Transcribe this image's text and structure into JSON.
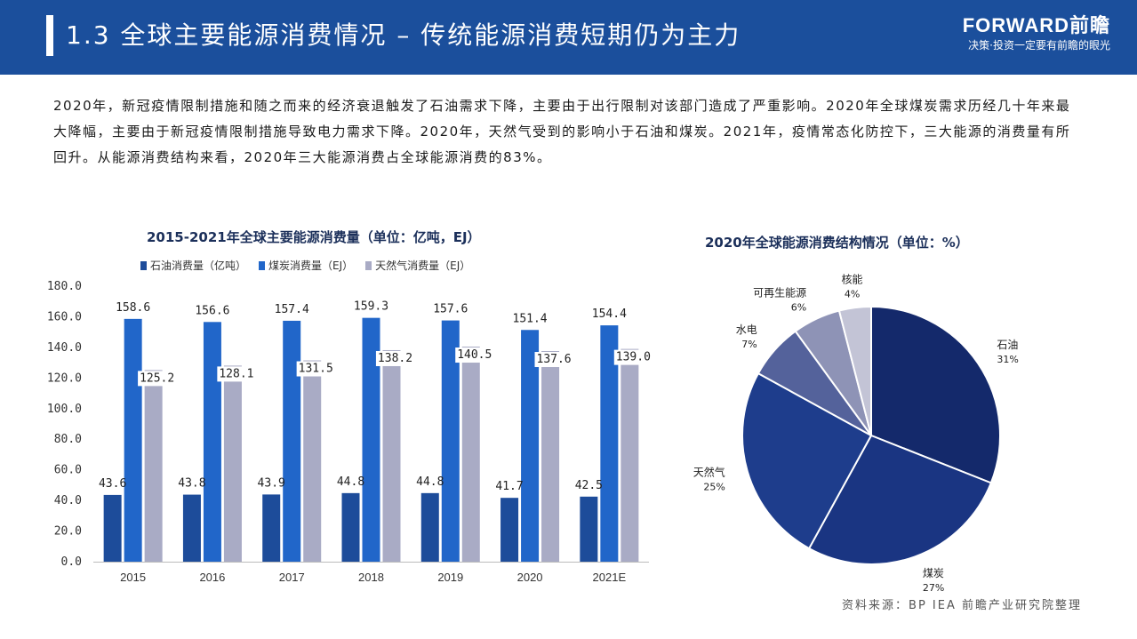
{
  "header": {
    "title": "1.3 全球主要能源消费情况 – 传统能源消费短期仍为主力",
    "brand_logo": "FORWARD前瞻",
    "brand_slogan": "决策·投资一定要有前瞻的眼光"
  },
  "intro": "2020年，新冠疫情限制措施和随之而来的经济衰退触发了石油需求下降，主要由于出行限制对该部门造成了严重影响。2020年全球煤炭需求历经几十年来最大降幅，主要由于新冠疫情限制措施导致电力需求下降。2020年，天然气受到的影响小于石油和煤炭。2021年，疫情常态化防控下，三大能源的消费量有所回升。从能源消费结构来看，2020年三大能源消费占全球能源消费的83%。",
  "source": "资料来源：BP IEA 前瞻产业研究院整理",
  "colors": {
    "header": "#1b4f9c",
    "oil": "#1d4c9a",
    "coal": "#2166c9",
    "gas": "#a9abc5"
  },
  "chart_data": [
    {
      "type": "bar",
      "title": "2015-2021年全球主要能源消费量（单位：亿吨，EJ）",
      "categories": [
        "2015",
        "2016",
        "2017",
        "2018",
        "2019",
        "2020",
        "2021E"
      ],
      "series": [
        {
          "name": "石油消费量（亿吨）",
          "values": [
            43.6,
            43.8,
            43.9,
            44.8,
            44.8,
            41.7,
            42.5
          ],
          "labels": [
            "43.6",
            "43.8",
            "43.9",
            "44.8",
            "44.8",
            "41.7",
            "42.5"
          ],
          "color": "#1d4c9a"
        },
        {
          "name": "煤炭消费量（EJ）",
          "values": [
            158.6,
            156.6,
            157.4,
            159.3,
            157.6,
            151.4,
            154.4
          ],
          "labels": [
            "158.6",
            "156.6",
            "157.4",
            "159.3",
            "157.6",
            "151.4",
            "154.4"
          ],
          "color": "#2166c9"
        },
        {
          "name": "天然气消费量（EJ）",
          "values": [
            125.2,
            128.1,
            131.5,
            138.2,
            140.5,
            137.6,
            139.0
          ],
          "labels": [
            "125.2",
            "128.1",
            "131.5",
            "138.2",
            "140.5",
            "137.6",
            "139.0"
          ],
          "color": "#a9abc5"
        }
      ],
      "yticks": [
        "0.0",
        "20.0",
        "40.0",
        "60.0",
        "80.0",
        "100.0",
        "120.0",
        "140.0",
        "160.0",
        "180.0"
      ],
      "ylim": [
        0,
        180
      ],
      "legend": "top"
    },
    {
      "type": "pie",
      "title": "2020年全球能源消费结构情况（单位：%）",
      "slices": [
        {
          "name": "石油",
          "value": 31,
          "label": "31%",
          "color": "#14296b"
        },
        {
          "name": "煤炭",
          "value": 27,
          "label": "27%",
          "color": "#1a3582"
        },
        {
          "name": "天然气",
          "value": 25,
          "label": "25%",
          "color": "#1e3d8c"
        },
        {
          "name": "水电",
          "value": 7,
          "label": "7%",
          "color": "#54629b"
        },
        {
          "name": "可再生能源",
          "value": 6,
          "label": "6%",
          "color": "#8e93b6"
        },
        {
          "name": "核能",
          "value": 4,
          "label": "4%",
          "color": "#c3c4d6"
        }
      ]
    }
  ]
}
